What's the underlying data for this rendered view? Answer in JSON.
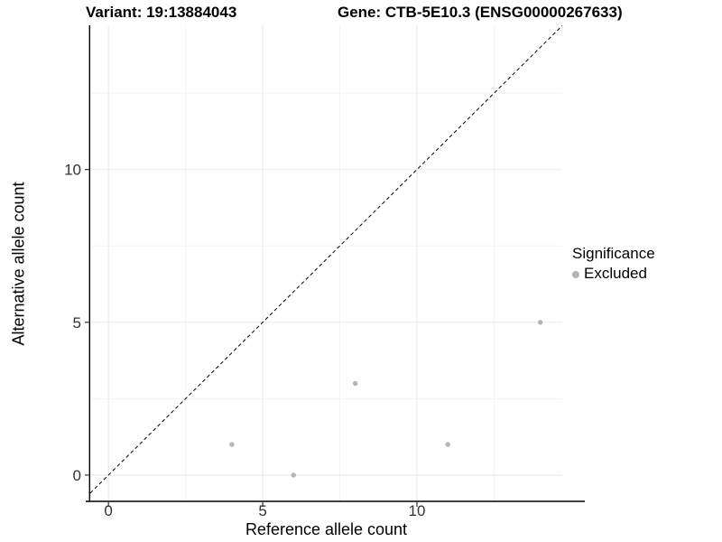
{
  "chart_data": {
    "type": "scatter",
    "title_left": "Variant: 19:13884043",
    "title_right": "Gene: CTB-5E10.3 (ENSG00000267633)",
    "xlabel": "Reference allele count",
    "ylabel": "Alternative allele count",
    "xlim": [
      -0.59,
      14.71
    ],
    "ylim": [
      -0.86,
      14.72
    ],
    "x_major_ticks": [
      0,
      5,
      10
    ],
    "y_major_ticks": [
      0,
      5,
      10
    ],
    "x_minor_gridlines": [
      2.5,
      7.5,
      12.5
    ],
    "y_minor_gridlines": [
      2.5,
      7.5,
      12.5
    ],
    "grid": "on",
    "legend_position": "right",
    "identity_line": {
      "style": "dashed",
      "slope": 1,
      "intercept": 0,
      "color": "#000000"
    },
    "series": [
      {
        "name": "Excluded",
        "color": "#b5b5b5",
        "points": [
          [
            4,
            1
          ],
          [
            6,
            0
          ],
          [
            8,
            3
          ],
          [
            11,
            1
          ],
          [
            14,
            5
          ]
        ]
      }
    ],
    "legend": {
      "title": "Significance",
      "items": [
        {
          "label": "Excluded",
          "color": "#b5b5b5"
        }
      ]
    },
    "colors": {
      "background": "#ffffff",
      "grid_major": "#ebebeb",
      "grid_minor": "#f5f5f5",
      "axis_line": "#000000",
      "tick_mark": "#333333",
      "tick_text": "#333333",
      "point": "#b5b5b5",
      "dashed_line": "#000000"
    }
  }
}
